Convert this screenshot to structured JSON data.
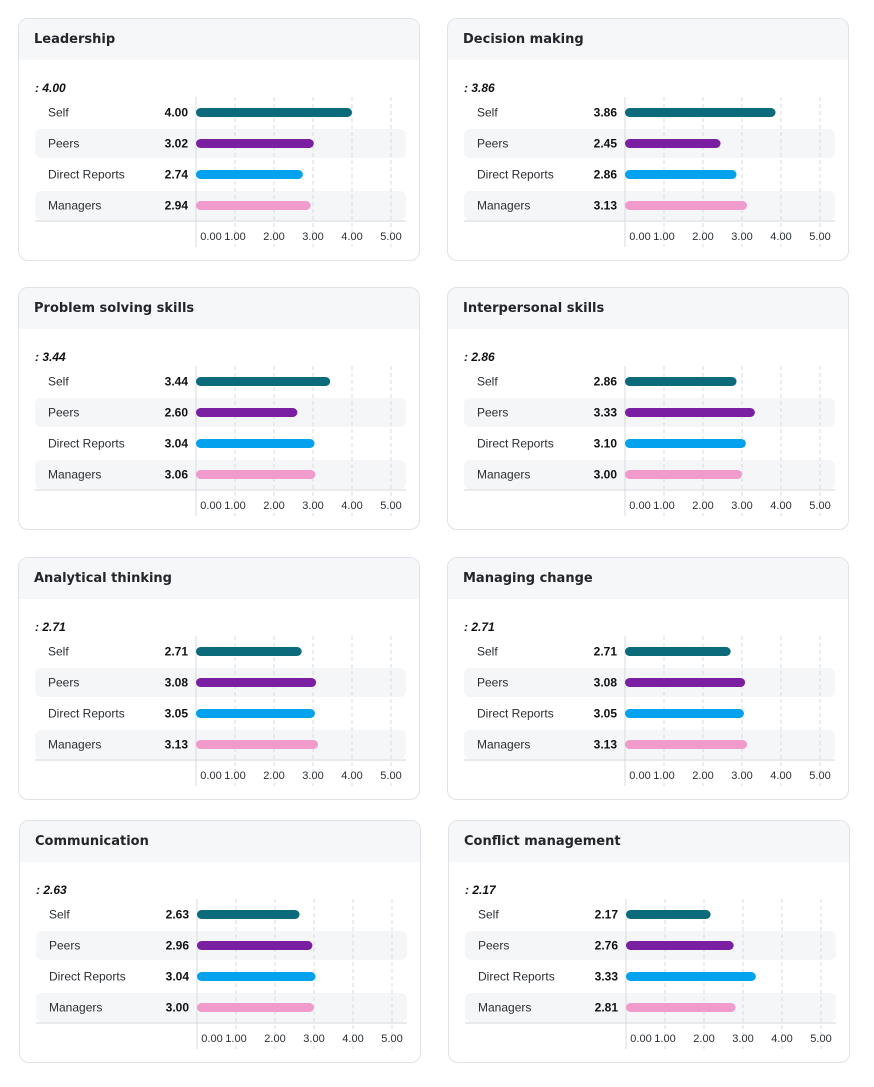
{
  "chart_data": [
    {
      "type": "bar",
      "title": "Leadership",
      "average_label": ": 4.00",
      "categories": [
        "Self",
        "Peers",
        "Direct Reports",
        "Managers"
      ],
      "values": [
        4.0,
        3.02,
        2.74,
        2.94
      ],
      "value_labels": [
        "4.00",
        "3.02",
        "2.74",
        "2.94"
      ],
      "xlim": [
        0,
        5
      ],
      "xticks": [
        "0.00",
        "1.00",
        "2.00",
        "3.00",
        "4.00",
        "5.00"
      ]
    },
    {
      "type": "bar",
      "title": "Decision making",
      "average_label": ": 3.86",
      "categories": [
        "Self",
        "Peers",
        "Direct Reports",
        "Managers"
      ],
      "values": [
        3.86,
        2.45,
        2.86,
        3.13
      ],
      "value_labels": [
        "3.86",
        "2.45",
        "2.86",
        "3.13"
      ],
      "xlim": [
        0,
        5
      ],
      "xticks": [
        "0.00",
        "1.00",
        "2.00",
        "3.00",
        "4.00",
        "5.00"
      ]
    },
    {
      "type": "bar",
      "title": "Problem solving skills",
      "average_label": ": 3.44",
      "categories": [
        "Self",
        "Peers",
        "Direct Reports",
        "Managers"
      ],
      "values": [
        3.44,
        2.6,
        3.04,
        3.06
      ],
      "value_labels": [
        "3.44",
        "2.60",
        "3.04",
        "3.06"
      ],
      "xlim": [
        0,
        5
      ],
      "xticks": [
        "0.00",
        "1.00",
        "2.00",
        "3.00",
        "4.00",
        "5.00"
      ]
    },
    {
      "type": "bar",
      "title": "Interpersonal skills",
      "average_label": ": 2.86",
      "categories": [
        "Self",
        "Peers",
        "Direct Reports",
        "Managers"
      ],
      "values": [
        2.86,
        3.33,
        3.1,
        3.0
      ],
      "value_labels": [
        "2.86",
        "3.33",
        "3.10",
        "3.00"
      ],
      "xlim": [
        0,
        5
      ],
      "xticks": [
        "0.00",
        "1.00",
        "2.00",
        "3.00",
        "4.00",
        "5.00"
      ]
    },
    {
      "type": "bar",
      "title": "Analytical thinking",
      "average_label": ": 2.71",
      "categories": [
        "Self",
        "Peers",
        "Direct Reports",
        "Managers"
      ],
      "values": [
        2.71,
        3.08,
        3.05,
        3.13
      ],
      "value_labels": [
        "2.71",
        "3.08",
        "3.05",
        "3.13"
      ],
      "xlim": [
        0,
        5
      ],
      "xticks": [
        "0.00",
        "1.00",
        "2.00",
        "3.00",
        "4.00",
        "5.00"
      ]
    },
    {
      "type": "bar",
      "title": "Managing change",
      "average_label": ": 2.71",
      "categories": [
        "Self",
        "Peers",
        "Direct Reports",
        "Managers"
      ],
      "values": [
        2.71,
        3.08,
        3.05,
        3.13
      ],
      "value_labels": [
        "2.71",
        "3.08",
        "3.05",
        "3.13"
      ],
      "xlim": [
        0,
        5
      ],
      "xticks": [
        "0.00",
        "1.00",
        "2.00",
        "3.00",
        "4.00",
        "5.00"
      ]
    },
    {
      "type": "bar",
      "title": "Communication",
      "average_label": ": 2.63",
      "categories": [
        "Self",
        "Peers",
        "Direct Reports",
        "Managers"
      ],
      "values": [
        2.63,
        2.96,
        3.04,
        3.0
      ],
      "value_labels": [
        "2.63",
        "2.96",
        "3.04",
        "3.00"
      ],
      "xlim": [
        0,
        5
      ],
      "xticks": [
        "0.00",
        "1.00",
        "2.00",
        "3.00",
        "4.00",
        "5.00"
      ]
    },
    {
      "type": "bar",
      "title": "Conflict management",
      "average_label": ": 2.17",
      "categories": [
        "Self",
        "Peers",
        "Direct Reports",
        "Managers"
      ],
      "values": [
        2.17,
        2.76,
        3.33,
        2.81
      ],
      "value_labels": [
        "2.17",
        "2.76",
        "3.33",
        "2.81"
      ],
      "xlim": [
        0,
        5
      ],
      "xticks": [
        "0.00",
        "1.00",
        "2.00",
        "3.00",
        "4.00",
        "5.00"
      ]
    }
  ],
  "colors": {
    "Self": "#0b6b7a",
    "Peers": "#7b1fa2",
    "Direct Reports": "#03a2ef",
    "Managers": "#f09bcb",
    "row_stripe": "#f5f6f8",
    "grid": "#d8dbe0"
  }
}
